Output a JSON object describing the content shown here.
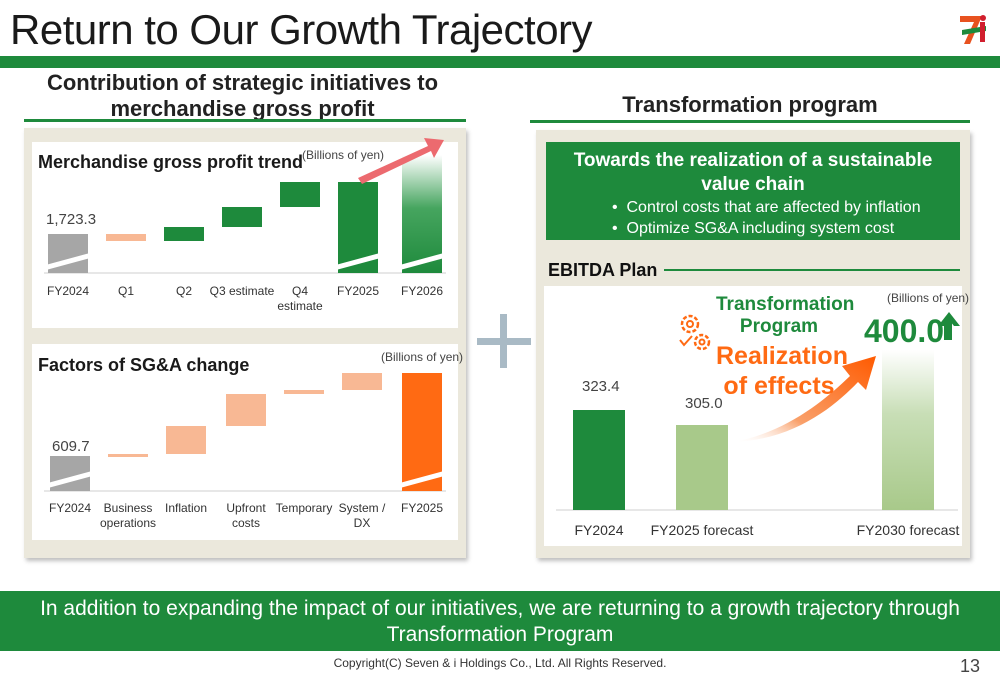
{
  "page": {
    "title": "Return to Our Growth Trajectory",
    "logo_text": "SEVEN & i HOLDINGS",
    "page_number": "13",
    "copyright": "Copyright(C) Seven & i Holdings Co., Ltd. All Rights Reserved."
  },
  "left_section": {
    "heading_line1": "Contribution of strategic initiatives to",
    "heading_line2": "merchandise gross profit"
  },
  "right_section": {
    "heading": "Transformation program",
    "box_title_line1": "Towards the realization of a sustainable",
    "box_title_line2": "value chain",
    "bullet1": "Control costs that are affected by inflation",
    "bullet2": "Optimize SG&A including system cost",
    "ebitda_title": "EBITDA Plan",
    "annotation_small_line1": "Transformation",
    "annotation_small_line2": "Program",
    "annotation_big_line1": "Realization",
    "annotation_big_line2": "of effects"
  },
  "plus_sign": "+",
  "footer": {
    "message_line1": "In addition to expanding the impact of our initiatives, we are returning to a growth trajectory through",
    "message_line2": "Transformation Program"
  },
  "colors": {
    "brand_green": "#1e8a3c",
    "light_green": "#a8c98a",
    "orange": "#ff6a13",
    "light_orange": "#f8b894",
    "gray": "#a6a6a6",
    "arrow_pink": "#ec6a6f"
  },
  "chart_data": [
    {
      "type": "waterfall",
      "title": "Merchandise gross profit trend",
      "unit": "(Billions of yen)",
      "categories": [
        "FY2024",
        "Q1",
        "Q2",
        "Q3 estimate",
        "Q4 estimate",
        "FY2025",
        "FY2026"
      ],
      "start_label": "1,723.3",
      "start_value": 1723.3,
      "steps": [
        {
          "category": "Q1",
          "direction": "down",
          "color": "light_orange"
        },
        {
          "category": "Q2",
          "direction": "up",
          "color": "green"
        },
        {
          "category": "Q3 estimate",
          "direction": "up",
          "color": "green"
        },
        {
          "category": "Q4 estimate",
          "direction": "up",
          "color": "green"
        }
      ]
    },
    {
      "type": "waterfall",
      "title": "Factors of SG&A change",
      "unit": "(Billions of yen)",
      "categories": [
        "FY2024",
        "Business operations",
        "Inflation",
        "Upfront costs",
        "Temporary",
        "System / DX",
        "FY2025"
      ],
      "start_label": "609.7",
      "start_value": 609.7
    },
    {
      "type": "bar",
      "title": "EBITDA Plan",
      "unit": "(Billions of yen)",
      "categories": [
        "FY2024",
        "FY2025 forecast",
        "FY2030 forecast"
      ],
      "values": [
        323.4,
        305.0,
        400.0
      ],
      "labels": [
        "323.4",
        "305.0",
        "400.0"
      ]
    }
  ]
}
